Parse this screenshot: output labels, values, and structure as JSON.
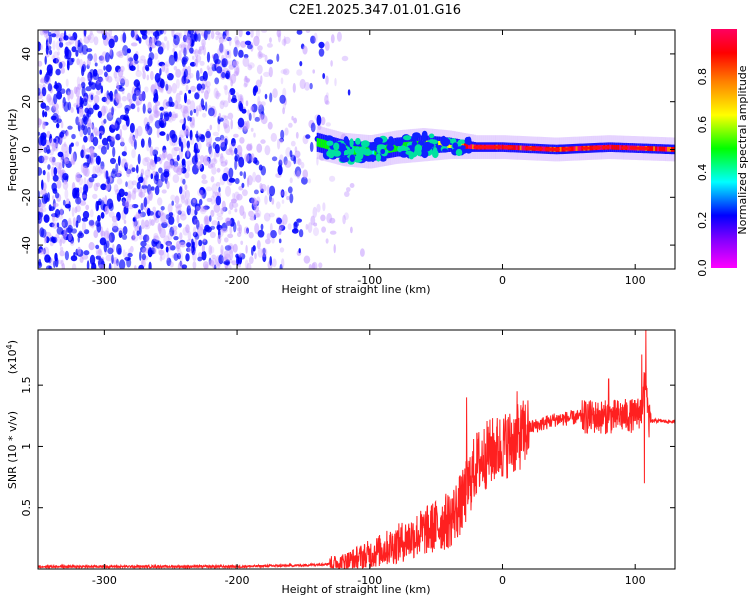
{
  "figure_title": "C2E1.2025.347.01.01.G16",
  "colors": {
    "snr_line": "#ff2020",
    "spectrogram_scatter": "#7a1fff",
    "frame": "#000000"
  },
  "chart_data": [
    {
      "type": "heatmap",
      "xlabel": "Height of straight line (km)",
      "ylabel": "Frequency (Hz)",
      "xlim": [
        -350,
        130
      ],
      "ylim": [
        -50,
        50
      ],
      "xticks": [
        "-300",
        "-200",
        "-100",
        "0",
        "100"
      ],
      "xtick_values": [
        -300,
        -200,
        -100,
        0,
        100
      ],
      "yticks": [
        "-40",
        "-20",
        "0",
        "20",
        "40"
      ],
      "ytick_values": [
        -40,
        -20,
        0,
        20,
        40
      ],
      "colorbar": {
        "label": "Normalized spectral amplitude",
        "range": [
          0,
          1
        ],
        "ticks": [
          "0.0",
          "0.2",
          "0.4",
          "0.6",
          "0.8"
        ],
        "tick_values": [
          0.0,
          0.2,
          0.4,
          0.6,
          0.8
        ],
        "colormap": [
          "#ff00ff",
          "#0000ff",
          "#00ffff",
          "#00ff00",
          "#ffff00",
          "#ff8000",
          "#ff0000",
          "#ff0060"
        ]
      },
      "noise_region_x": [
        -350,
        -120
      ],
      "signal_band": {
        "x_start": -140,
        "center_freq_hz": 0,
        "profile": [
          {
            "x": -140,
            "center": 3,
            "halfwidth": 4,
            "amp": 0.4
          },
          {
            "x": -120,
            "center": 0,
            "halfwidth": 4,
            "amp": 0.45
          },
          {
            "x": -100,
            "center": -1,
            "halfwidth": 4,
            "amp": 0.4
          },
          {
            "x": -80,
            "center": 1,
            "halfwidth": 4,
            "amp": 0.45
          },
          {
            "x": -60,
            "center": 2,
            "halfwidth": 4,
            "amp": 0.5
          },
          {
            "x": -40,
            "center": 2,
            "halfwidth": 3,
            "amp": 0.55
          },
          {
            "x": -20,
            "center": 1,
            "halfwidth": 2,
            "amp": 0.9
          },
          {
            "x": 0,
            "center": 1,
            "halfwidth": 2,
            "amp": 0.9
          },
          {
            "x": 40,
            "center": 0,
            "halfwidth": 2,
            "amp": 0.8
          },
          {
            "x": 80,
            "center": 1,
            "halfwidth": 2,
            "amp": 0.92
          },
          {
            "x": 130,
            "center": 0,
            "halfwidth": 2,
            "amp": 0.85
          }
        ]
      },
      "grid": false
    },
    {
      "type": "line",
      "xlabel": "Height of straight line (km)",
      "ylabel": "SNR (10 * v/v)",
      "y_multiplier": "(x10",
      "y_multiplier_exp": "4",
      "y_multiplier_close": ")",
      "xlim": [
        -350,
        130
      ],
      "ylim": [
        0,
        1.95
      ],
      "xticks": [
        "-300",
        "-200",
        "-100",
        "0",
        "100"
      ],
      "xtick_values": [
        -300,
        -200,
        -100,
        0,
        100
      ],
      "yticks": [
        "0.5",
        "1",
        "1.5"
      ],
      "ytick_values": [
        0.5,
        1.0,
        1.5
      ],
      "series": [
        {
          "x": [
            -350,
            -300,
            -250,
            -200,
            -150,
            -120,
            -100,
            -80,
            -60,
            -40,
            -30,
            -20,
            -10,
            0,
            10,
            20,
            40,
            60,
            80,
            90,
            100,
            105,
            108,
            110,
            115,
            130
          ],
          "y": [
            0.02,
            0.02,
            0.02,
            0.02,
            0.03,
            0.05,
            0.12,
            0.2,
            0.3,
            0.4,
            0.55,
            0.85,
            0.95,
            1.0,
            1.05,
            1.15,
            1.22,
            1.24,
            1.24,
            1.25,
            1.25,
            1.3,
            1.6,
            1.2,
            1.21,
            1.2
          ]
        }
      ],
      "spikes": [
        {
          "x": -27,
          "y": 1.4
        },
        {
          "x": 11,
          "y": 1.45
        },
        {
          "x": 80,
          "y": 1.55
        },
        {
          "x": 105,
          "y": 1.75
        },
        {
          "x": 108,
          "y": 1.95
        },
        {
          "x": 107,
          "y": 0.7
        }
      ],
      "grid": false
    }
  ]
}
